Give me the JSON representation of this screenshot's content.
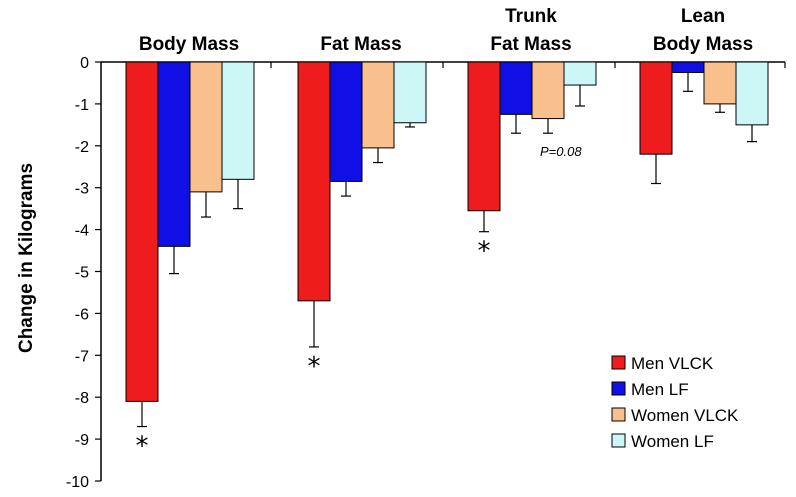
{
  "chart_data": {
    "type": "bar",
    "ylabel": "Change in Kilograms",
    "xlabel": "",
    "ylim": [
      -10,
      0
    ],
    "yticks": [
      0,
      -1,
      -2,
      -3,
      -4,
      -5,
      -6,
      -7,
      -8,
      -9,
      -10
    ],
    "ytick_labels": [
      "0",
      "-1",
      "-2",
      "-3",
      "-4",
      "-5",
      "-6",
      "-7",
      "-8",
      "-9",
      "-10"
    ],
    "categories": [
      {
        "line1": "Body Mass",
        "line2": ""
      },
      {
        "line1": "Fat Mass",
        "line2": ""
      },
      {
        "line1": "Trunk",
        "line2": "Fat Mass"
      },
      {
        "line1": "Lean",
        "line2": "Body Mass"
      }
    ],
    "series": [
      {
        "name": "Men VLCK",
        "color": "#ee1c1c",
        "values": [
          -8.1,
          -5.7,
          -3.55,
          -2.2
        ],
        "errors": [
          0.6,
          1.1,
          0.5,
          0.7
        ]
      },
      {
        "name": "Men LF",
        "color": "#1010e6",
        "values": [
          -4.4,
          -2.85,
          -1.25,
          -0.25
        ],
        "errors": [
          0.65,
          0.35,
          0.45,
          0.45
        ]
      },
      {
        "name": "Women VLCK",
        "color": "#f9c08e",
        "values": [
          -3.1,
          -2.05,
          -1.35,
          -1.0
        ],
        "errors": [
          0.6,
          0.35,
          0.35,
          0.2
        ]
      },
      {
        "name": "Women LF",
        "color": "#cdf7f7",
        "values": [
          -2.8,
          -1.45,
          -0.55,
          -1.5
        ],
        "errors": [
          0.7,
          0.1,
          0.5,
          0.4
        ]
      }
    ],
    "significance": [
      {
        "category": 0,
        "series": 0,
        "marker": "*"
      },
      {
        "category": 1,
        "series": 0,
        "marker": "*"
      },
      {
        "category": 2,
        "series": 0,
        "marker": "*"
      }
    ],
    "annotations": [
      {
        "text": "P=0.08",
        "category": 2
      }
    ],
    "legend_position": "bottom-right"
  }
}
